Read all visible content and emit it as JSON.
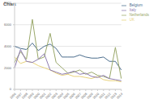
{
  "chart_data": {
    "type": "line",
    "title": "Chart",
    "categories": [
      "1996",
      "1997",
      "1998",
      "1999",
      "2000",
      "2001",
      "2002",
      "2003",
      "2004",
      "2005",
      "2006",
      "2007",
      "2008",
      "2009",
      "2010",
      "2011",
      "2012",
      "2013",
      "2014"
    ],
    "series": [
      {
        "name": "Belgium",
        "color": "#4a6c8c",
        "values": [
          4000,
          3800,
          3700,
          4300,
          3600,
          4000,
          4200,
          3800,
          3000,
          3000,
          3000,
          3200,
          3000,
          2900,
          2900,
          3000,
          2600,
          2600,
          1800
        ]
      },
      {
        "name": "Netherlands",
        "color": "#9aa86a",
        "values": [
          2500,
          3500,
          2800,
          6500,
          2800,
          3000,
          5200,
          2500,
          2000,
          1500,
          1600,
          1800,
          1400,
          1600,
          1300,
          1200,
          1000,
          3900,
          1000
        ]
      },
      {
        "name": "UK",
        "color": "#e8d27a",
        "values": [
          3000,
          2400,
          2600,
          2500,
          2200,
          2000,
          1800,
          1500,
          1300,
          1400,
          1200,
          1200,
          1100,
          1000,
          1200,
          900,
          800,
          800,
          700
        ]
      },
      {
        "name": "Italy",
        "color": "#8e7cb0",
        "values": [
          2000,
          3700,
          2600,
          2500,
          2800,
          3300,
          1800,
          1600,
          1400,
          1500,
          1700,
          1400,
          1500,
          1200,
          1100,
          1300,
          1000,
          900,
          800
        ]
      }
    ],
    "ylim": [
      0,
      8000
    ],
    "yticks": [
      0,
      2000,
      4000,
      6000,
      8000
    ],
    "grid": true,
    "legend": "top-right"
  }
}
